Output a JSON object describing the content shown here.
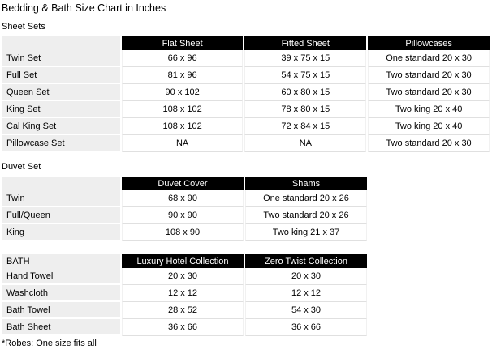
{
  "title": "Bedding & Bath Size Chart in Inches",
  "footnote": "*Robes: One size fits all",
  "colors": {
    "header_bg": "#000000",
    "header_text": "#ffffff",
    "label_column_bg": "#eeeeee",
    "row_divider": "#e0e0e0",
    "page_bg": "#ffffff"
  },
  "sheet_sets": {
    "section_label": "Sheet Sets",
    "columns": [
      "Flat Sheet",
      "Fitted Sheet",
      "Pillowcases"
    ],
    "rows": [
      {
        "label": "Twin Set",
        "cells": [
          "66 x 96",
          "39 x 75 x 15",
          "One standard 20 x 30"
        ]
      },
      {
        "label": "Full Set",
        "cells": [
          "81 x 96",
          "54 x 75 x 15",
          "Two standard 20 x 30"
        ]
      },
      {
        "label": "Queen Set",
        "cells": [
          "90 x 102",
          "60 x 80 x 15",
          "Two standard 20 x 30"
        ]
      },
      {
        "label": "King Set",
        "cells": [
          "108 x 102",
          "78 x 80 x 15",
          "Two king 20 x 40"
        ]
      },
      {
        "label": "Cal King Set",
        "cells": [
          "108 x 102",
          "72 x 84 x 15",
          "Two king 20 x 40"
        ]
      },
      {
        "label": "Pillowcase Set",
        "cells": [
          "NA",
          "NA",
          "Two standard 20 x 30"
        ]
      }
    ]
  },
  "duvet_set": {
    "section_label": "Duvet Set",
    "columns": [
      "Duvet Cover",
      "Shams"
    ],
    "rows": [
      {
        "label": "Twin",
        "cells": [
          "68 x 90",
          "One standard 20 x 26"
        ]
      },
      {
        "label": "Full/Queen",
        "cells": [
          "90 x 90",
          "Two standard 20 x 26"
        ]
      },
      {
        "label": "King",
        "cells": [
          "108 x 90",
          "Two king 21 x 37"
        ]
      }
    ]
  },
  "bath": {
    "corner_label": "BATH",
    "columns": [
      "Luxury Hotel Collection",
      "Zero Twist Collection"
    ],
    "rows": [
      {
        "label": "Hand Towel",
        "cells": [
          "20 x 30",
          "20 x 30"
        ]
      },
      {
        "label": "Washcloth",
        "cells": [
          "12 x 12",
          "12 x 12"
        ]
      },
      {
        "label": "Bath Towel",
        "cells": [
          "28 x 52",
          "54 x 30"
        ]
      },
      {
        "label": "Bath Sheet",
        "cells": [
          "36 x 66",
          "36 x 66"
        ]
      }
    ]
  }
}
